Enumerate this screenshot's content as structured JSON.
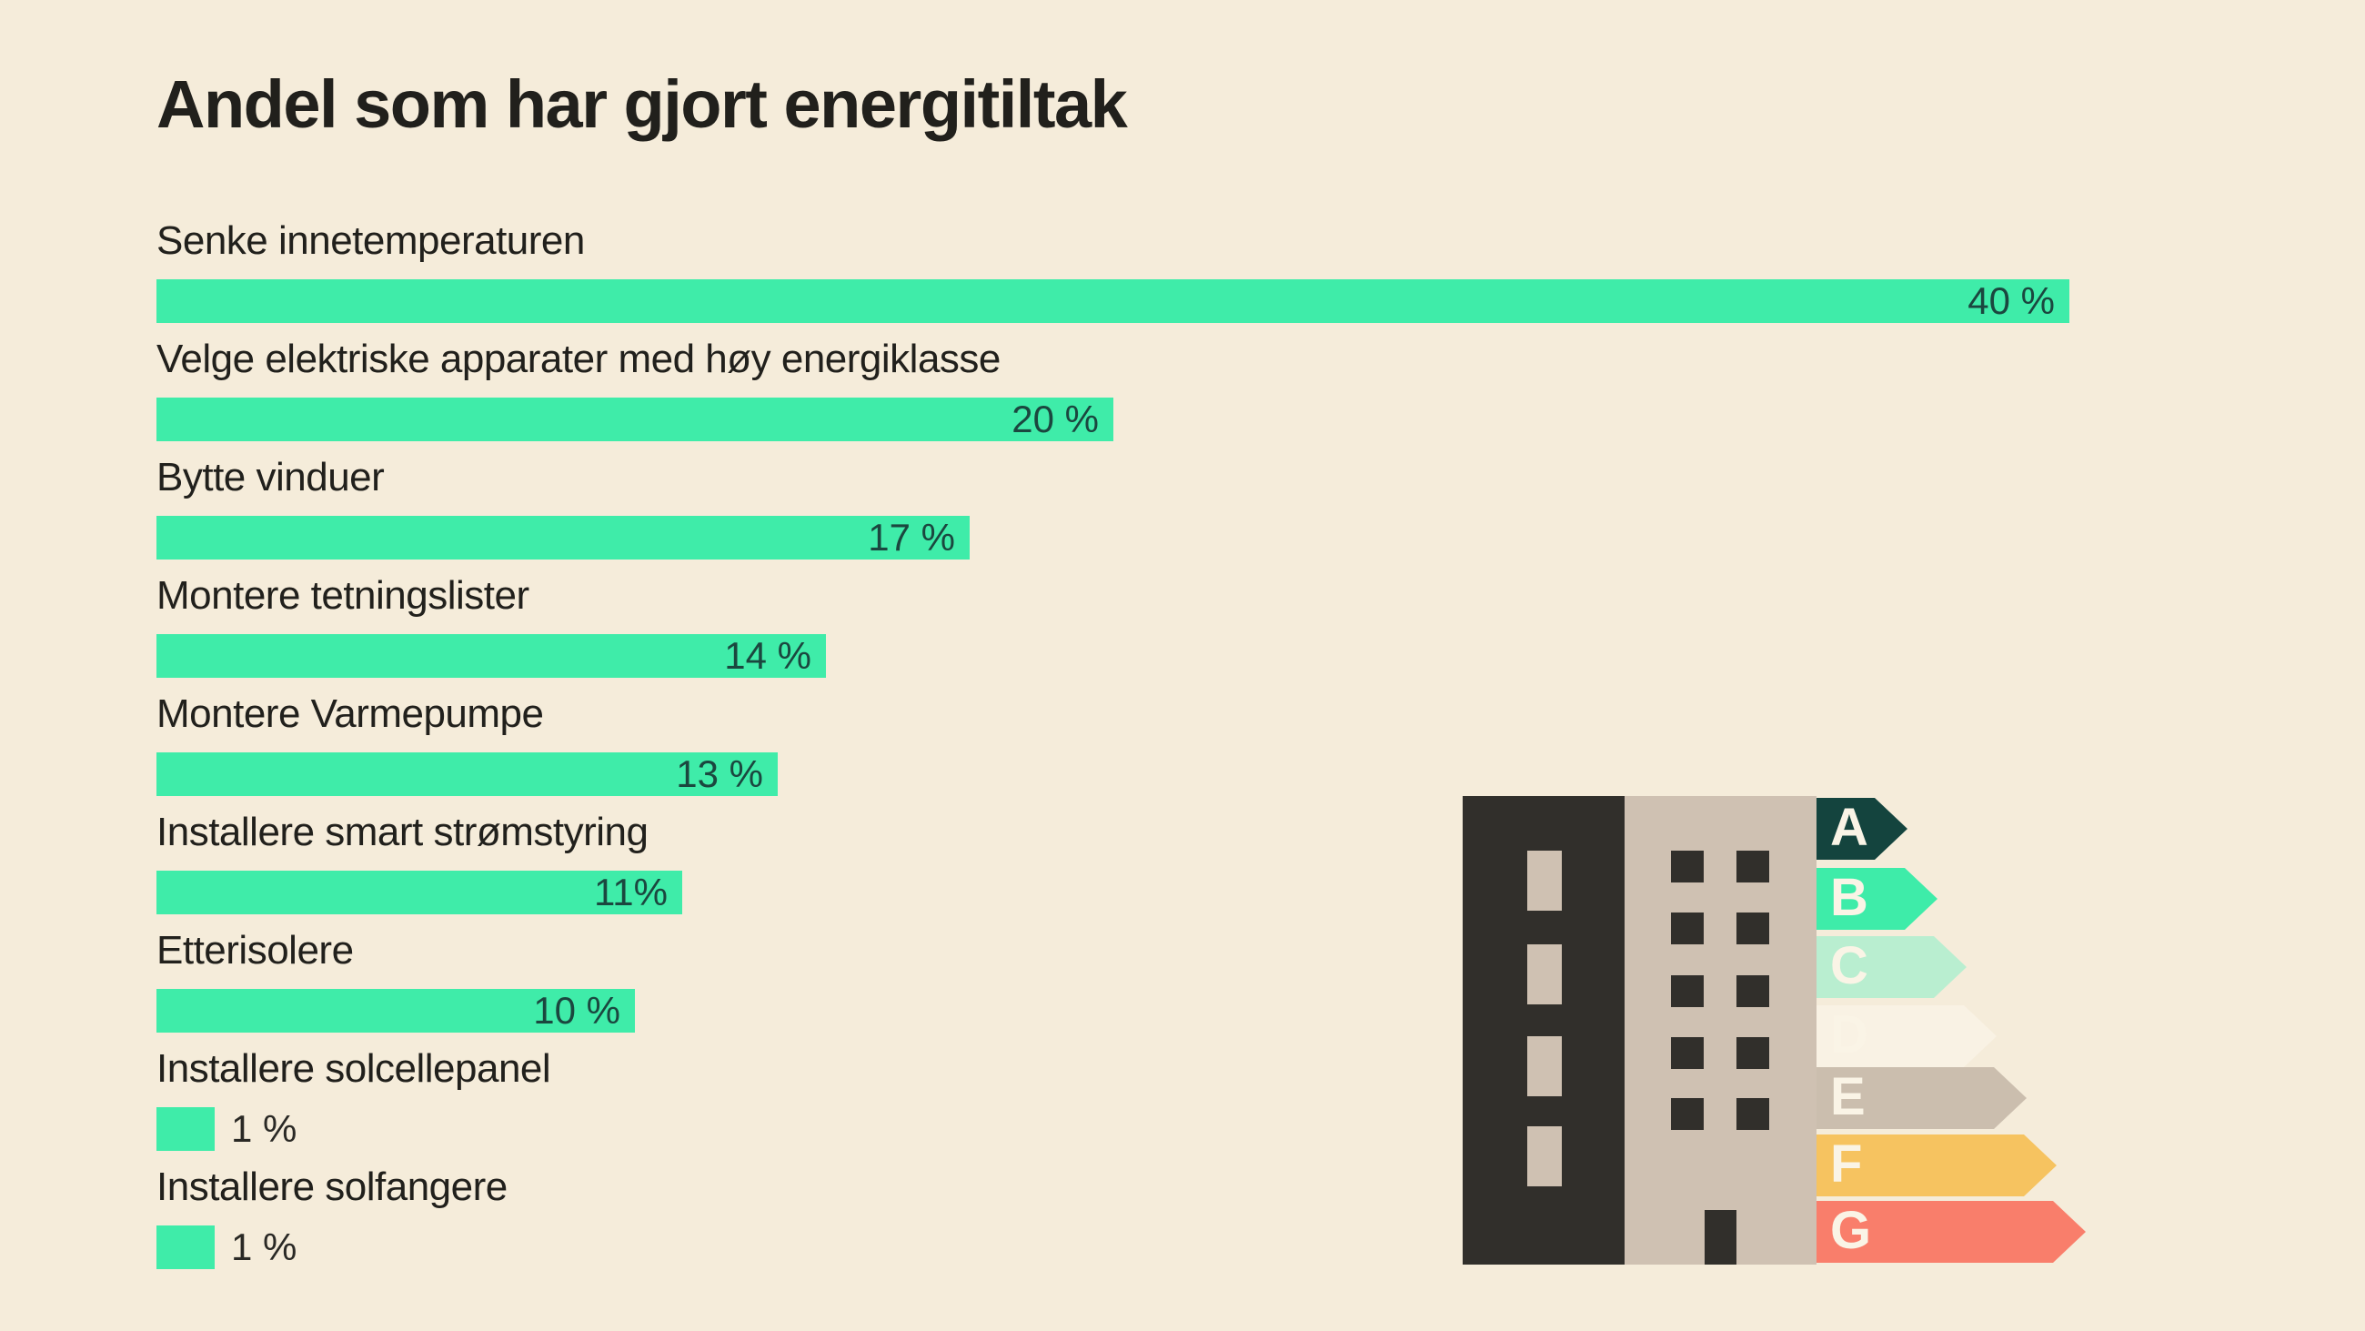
{
  "title": "Andel som har gjort energitiltak",
  "chart_data": {
    "type": "bar",
    "orientation": "horizontal",
    "title": "Andel som har gjort energitiltak",
    "categories": [
      "Senke innetemperaturen",
      "Velge elektriske apparater med høy energiklasse",
      "Bytte vinduer",
      "Montere tetningslister",
      "Montere Varmepumpe",
      "Installere smart strømstyring",
      "Etterisolere",
      "Installere solcellepanel",
      "Installere solfangere"
    ],
    "values": [
      40,
      20,
      17,
      14,
      13,
      11,
      10,
      1,
      1
    ],
    "value_labels": [
      "40 %",
      "20 %",
      "17 %",
      "14 %",
      "13 %",
      "11%",
      "10 %",
      "1 %",
      "1 %"
    ],
    "unit": "%",
    "xlim": [
      0,
      40
    ],
    "grid": false,
    "legend": false,
    "bar_color": "#3feca9"
  },
  "energy_label": {
    "grades": [
      {
        "letter": "A",
        "color": "#14443e"
      },
      {
        "letter": "B",
        "color": "#3eeca9"
      },
      {
        "letter": "C",
        "color": "#b9eed0"
      },
      {
        "letter": "D",
        "color": "#f9f2e4"
      },
      {
        "letter": "E",
        "color": "#cbbeae"
      },
      {
        "letter": "F",
        "color": "#f6c360"
      },
      {
        "letter": "G",
        "color": "#f97e6b"
      }
    ],
    "letter_color": "#faf4e6"
  },
  "colors": {
    "background": "#f5ecda",
    "text": "#21201c",
    "bar_value_text": "#1b473f",
    "building_dark": "#312f2b",
    "building_light": "#cfc1b2"
  }
}
